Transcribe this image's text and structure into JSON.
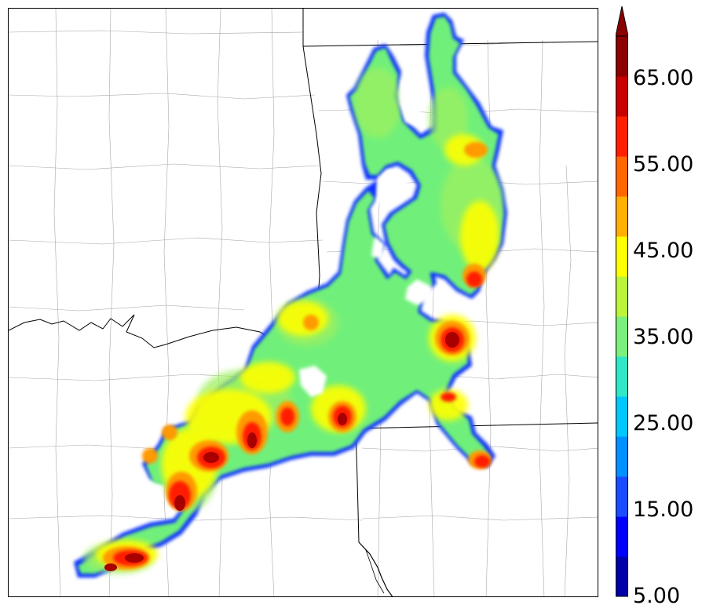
{
  "colorbar": {
    "labels": [
      "5.00",
      "15.00",
      "25.00",
      "35.00",
      "45.00",
      "55.00",
      "65.00"
    ],
    "values": [
      5,
      15,
      25,
      35,
      45,
      55,
      65
    ],
    "min": 5,
    "max": 70,
    "extend": "max",
    "colors": [
      "#0000a8",
      "#0000ff",
      "#1c4cff",
      "#0090ff",
      "#00c8ff",
      "#30e8c8",
      "#7cf07c",
      "#bcf43c",
      "#ffff00",
      "#ffb000",
      "#ff6800",
      "#ff2000",
      "#c80000",
      "#8c0000"
    ]
  },
  "map": {
    "background": "#ffffff",
    "boundary_color": "#000000",
    "county_color": "#a0a0a0"
  }
}
